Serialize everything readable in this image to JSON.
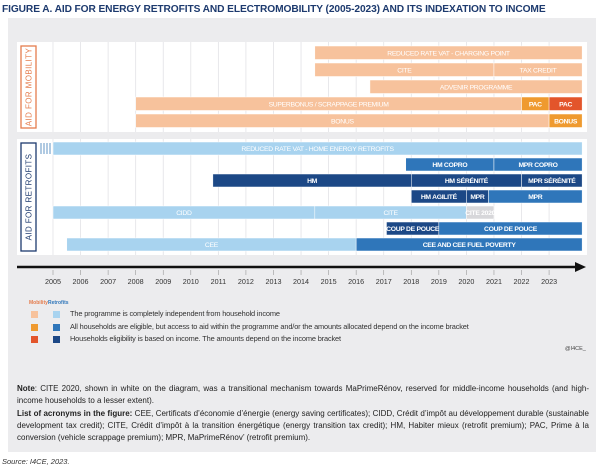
{
  "title": "FIGURE A. AID FOR ENERGY RETROFITS AND ELECTROMOBILITY (2005-2023) AND ITS INDEXATION TO INCOME",
  "colors": {
    "mob_light": "#f7c29c",
    "mob_mid": "#ef9a2f",
    "mob_dark": "#e3552b",
    "ret_light": "#a8d3ef",
    "ret_mid": "#2f76ba",
    "ret_dark": "#1c4886",
    "mob_border": "#e47c4d",
    "ret_border": "#1d3a6e"
  },
  "timeline": {
    "years": [
      2005,
      2006,
      2007,
      2008,
      2009,
      2010,
      2011,
      2012,
      2013,
      2014,
      2015,
      2016,
      2017,
      2018,
      2019,
      2020,
      2021,
      2022,
      2023
    ],
    "groups": [
      {
        "label": "AID FOR MOBILITY",
        "kind": "mob",
        "rows": [
          [
            {
              "label": "REDUCED RATE VAT - CHARGING POINT",
              "start": 2014.5,
              "end": 2024.2,
              "level": "light"
            }
          ],
          [
            {
              "label": "CITE",
              "start": 2014.5,
              "end": 2021,
              "level": "light"
            },
            {
              "label": "TAX CREDIT",
              "start": 2021,
              "end": 2024.2,
              "level": "light"
            }
          ],
          [
            {
              "label": "ADVENIR PROGRAMME",
              "start": 2016.5,
              "end": 2024.2,
              "level": "light"
            }
          ],
          [
            {
              "label": "SUPERBONUS / SCRAPPAGE PREMIUM",
              "start": 2008,
              "end": 2022,
              "level": "light"
            },
            {
              "label": "PAC",
              "start": 2022,
              "end": 2023,
              "level": "mid"
            },
            {
              "label": "PAC",
              "start": 2023,
              "end": 2024.2,
              "level": "dark"
            }
          ],
          [
            {
              "label": "BONUS",
              "start": 2008,
              "end": 2023,
              "level": "light"
            },
            {
              "label": "BONUS",
              "start": 2023,
              "end": 2024.2,
              "level": "mid"
            }
          ]
        ]
      },
      {
        "label": "AID FOR RETROFITS",
        "kind": "ret",
        "rows": [
          [
            {
              "label": "REDUCED RATE VAT - HOME ENERGY RETROFITS",
              "start": 2005,
              "end": 2024.2,
              "level": "light"
            }
          ],
          [
            {
              "label": "HM COPRO",
              "start": 2017.8,
              "end": 2021,
              "level": "mid"
            },
            {
              "label": "MPR COPRO",
              "start": 2021,
              "end": 2024.2,
              "level": "mid"
            }
          ],
          [
            {
              "label": "HM",
              "start": 2010.8,
              "end": 2018,
              "level": "dark"
            },
            {
              "label": "HM SÉRÉNITÉ",
              "start": 2018,
              "end": 2022,
              "level": "dark"
            },
            {
              "label": "MPR SÉRÉNITÉ",
              "start": 2022,
              "end": 2024.2,
              "level": "dark"
            }
          ],
          [
            {
              "label": "HM AGILITÉ",
              "start": 2018,
              "end": 2020,
              "level": "dark"
            },
            {
              "label": "MPR",
              "start": 2020,
              "end": 2020.8,
              "level": "dark"
            },
            {
              "label": "MPR",
              "start": 2020.8,
              "end": 2024.2,
              "level": "mid"
            }
          ],
          [
            {
              "label": "CIDD",
              "start": 2005,
              "end": 2014.5,
              "level": "light"
            },
            {
              "label": "CITE",
              "start": 2014.5,
              "end": 2020,
              "level": "light"
            },
            {
              "label": "CITE 2020",
              "start": 2020,
              "end": 2021,
              "level": "white"
            }
          ],
          [
            {
              "label": "COUP DE POUCE",
              "start": 2017.1,
              "end": 2019,
              "level": "dark"
            },
            {
              "label": "COUP DE POUCE",
              "start": 2019,
              "end": 2024.2,
              "level": "mid"
            }
          ],
          [
            {
              "label": "CEE",
              "start": 2005.5,
              "end": 2016,
              "level": "light"
            },
            {
              "label": "CEE AND CEE FUEL POVERTY",
              "start": 2016,
              "end": 2024.2,
              "level": "mid"
            }
          ]
        ]
      }
    ]
  },
  "legend": {
    "mobility": "Mobility",
    "retrofits": "Retrofits",
    "items": [
      "The programme is completely independent from household income",
      "All households are eligible, but access to aid within the programme and/or the amounts allocated depend on the income bracket",
      "Households eligibility is based on income. The amounts depend on the income bracket"
    ]
  },
  "credit": "@I4CE_",
  "note": {
    "label": "Note",
    "text": ": CITE 2020, shown in white on the diagram, was a transitional mechanism towards MaPrimeRénov, reserved for middle-income households (and high-income households to a lesser extent).",
    "acronyms_label": "List of acronyms in the figure:",
    "acronyms_text": " CEE, Certificats d’économie d’énergie (energy saving certificates); CIDD, Crédit d’impôt au développement durable (sustainable development tax credit); CITE, Crédit d’impôt à la transition énergétique (energy transition tax credit); HM, Habiter mieux (retrofit premium); PAC, Prime à la conversion (vehicle scrappage premium); MPR, MaPrimeRénov’ (retrofit premium)."
  },
  "source": "Source: I4CE, 2023."
}
